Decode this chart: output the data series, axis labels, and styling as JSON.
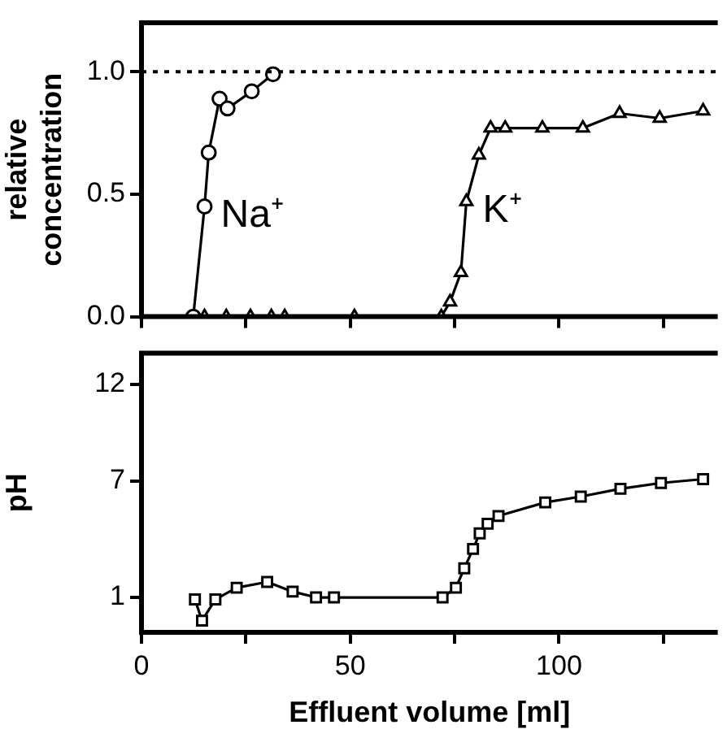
{
  "chart_data": [
    {
      "type": "line",
      "ylabel": "relative concentration",
      "xlim": [
        0,
        138
      ],
      "ylim": [
        0,
        1.2
      ],
      "xticks": [
        {
          "value": 0,
          "label": null
        },
        {
          "value": 25,
          "label": null
        },
        {
          "value": 50,
          "label": null
        },
        {
          "value": 75,
          "label": null
        },
        {
          "value": 100,
          "label": null
        },
        {
          "value": 125,
          "label": null
        }
      ],
      "yticks": [
        {
          "value": 0,
          "label": "0.0"
        },
        {
          "value": 0.5,
          "label": "0.5"
        },
        {
          "value": 1,
          "label": "1.0"
        }
      ],
      "tick_labels": "y",
      "grid": false,
      "legend": false,
      "ref_lines": [
        {
          "axis": "y",
          "value": 1,
          "line_style": "dotted",
          "color": "#000000"
        }
      ],
      "series": [
        {
          "name": "Na⁺",
          "color": "#000000",
          "marker": "circle",
          "x": [
            12.4,
            15.1,
            16.1,
            18.7,
            20.6,
            26.4,
            31.5
          ],
          "values": [
            0,
            0.45,
            0.67,
            0.89,
            0.85,
            0.92,
            0.99
          ]
        },
        {
          "name": "K⁺",
          "color": "#000000",
          "marker": "triangle",
          "x": [
            15.1,
            20.3,
            26.1,
            31.1,
            34.3,
            51.0,
            71.8,
            73.9,
            76.5,
            77.8,
            80.8,
            83.6,
            87.1,
            96.0,
            105.7,
            114.5,
            124.1,
            134.5
          ],
          "values": [
            0,
            0,
            0,
            0,
            0,
            0,
            0,
            0.06,
            0.18,
            0.47,
            0.66,
            0.77,
            0.77,
            0.77,
            0.77,
            0.83,
            0.81,
            0.84
          ]
        }
      ]
    },
    {
      "type": "line",
      "ylabel": "pH",
      "xlabel": "Effluent volume [ml]",
      "xlim": [
        0,
        138
      ],
      "ylim": [
        -0.8,
        13.6
      ],
      "xticks": [
        0,
        {
          "value": 25,
          "label": null
        },
        50,
        {
          "value": 75,
          "label": null
        },
        100,
        {
          "value": 125,
          "label": null
        }
      ],
      "yticks": [
        1,
        7,
        12
      ],
      "grid": false,
      "legend": false,
      "series": [
        {
          "color": "#000000",
          "marker": "square",
          "x": [
            12.8,
            14.5,
            17.7,
            22.8,
            30.1,
            36.2,
            41.8,
            46.1,
            72.1,
            75.3,
            77.3,
            79.4,
            81.0,
            82.9,
            85.5,
            96.7,
            105.2,
            114.7,
            124.4,
            134.5
          ],
          "values": [
            0.9,
            -0.2,
            0.9,
            1.5,
            1.8,
            1.3,
            1.0,
            1.0,
            1.0,
            1.5,
            2.5,
            3.5,
            4.3,
            4.8,
            5.2,
            5.9,
            6.2,
            6.6,
            6.9,
            7.1
          ]
        }
      ]
    }
  ]
}
